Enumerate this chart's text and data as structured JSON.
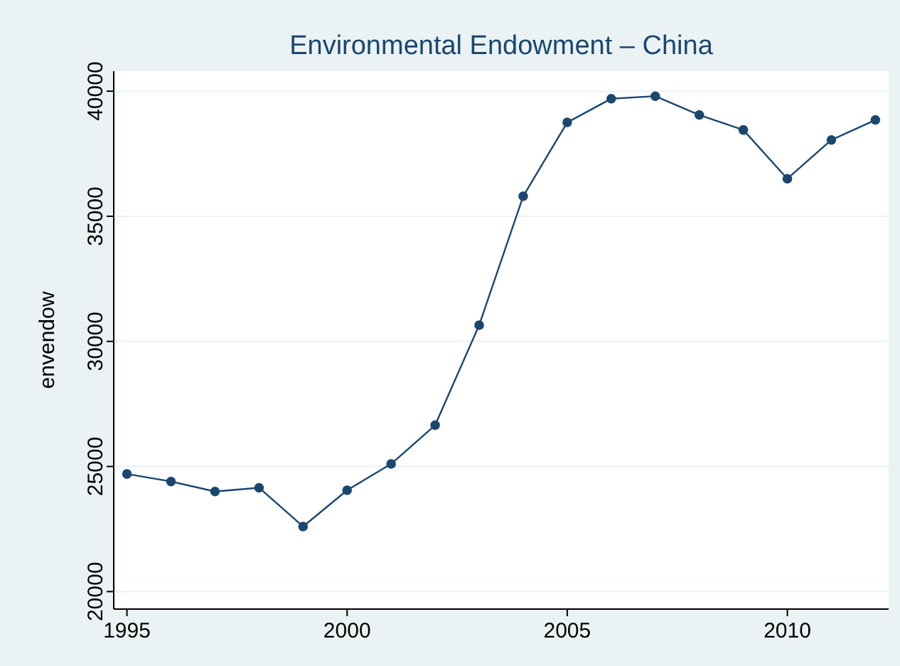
{
  "chart_data": {
    "type": "line",
    "title": "Environmental Endowment – China",
    "ylabel": "envendow",
    "x": [
      1995,
      1996,
      1997,
      1998,
      1999,
      2000,
      2001,
      2002,
      2003,
      2004,
      2005,
      2006,
      2007,
      2008,
      2009,
      2010,
      2011,
      2012
    ],
    "series": [
      {
        "color": "#1a476f",
        "values": [
          24700,
          24400,
          24000,
          24150,
          22600,
          24050,
          25100,
          26650,
          30650,
          35800,
          38750,
          39700,
          39800,
          39050,
          38450,
          36500,
          38050,
          38850
        ]
      }
    ],
    "xlim": [
      1994.7,
      2012.3
    ],
    "ylim": [
      19300,
      40800
    ],
    "xticks": [
      1995,
      2000,
      2005,
      2010
    ],
    "yticks": [
      20000,
      25000,
      30000,
      35000,
      40000
    ],
    "grid": "y",
    "marker": "circle",
    "line_style": "solid"
  }
}
